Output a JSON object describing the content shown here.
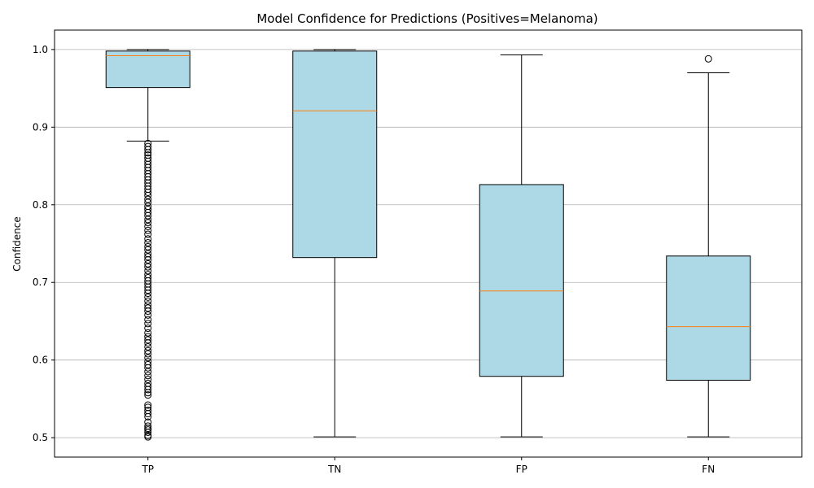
{
  "chart_data": {
    "type": "box",
    "title": "Model Confidence for Predictions (Positives=Melanoma)",
    "xlabel": "",
    "ylabel": "Confidence",
    "ylim": [
      0.475,
      1.025
    ],
    "yticks": [
      0.5,
      0.6,
      0.7,
      0.8,
      0.9,
      1.0
    ],
    "ytick_labels": [
      "0.5",
      "0.6",
      "0.7",
      "0.8",
      "0.9",
      "1.0"
    ],
    "grid": "horizontal",
    "box_color": "#add8e6",
    "median_color": "#ff7f0e",
    "categories": [
      "TP",
      "TN",
      "FP",
      "FN"
    ],
    "boxes": [
      {
        "label": "TP",
        "whisker_low": 0.882,
        "q1": 0.951,
        "median": 0.992,
        "q3": 0.998,
        "whisker_high": 1.0,
        "outliers": [
          0.501,
          0.503,
          0.507,
          0.51,
          0.512,
          0.515,
          0.52,
          0.527,
          0.531,
          0.535,
          0.539,
          0.542,
          0.555,
          0.558,
          0.562,
          0.566,
          0.57,
          0.575,
          0.58,
          0.585,
          0.59,
          0.594,
          0.598,
          0.603,
          0.608,
          0.612,
          0.617,
          0.622,
          0.626,
          0.63,
          0.635,
          0.641,
          0.647,
          0.652,
          0.658,
          0.663,
          0.667,
          0.671,
          0.676,
          0.681,
          0.686,
          0.69,
          0.694,
          0.698,
          0.702,
          0.706,
          0.71,
          0.715,
          0.72,
          0.724,
          0.729,
          0.733,
          0.737,
          0.742,
          0.746,
          0.751,
          0.756,
          0.762,
          0.767,
          0.772,
          0.777,
          0.781,
          0.786,
          0.79,
          0.794,
          0.798,
          0.803,
          0.807,
          0.812,
          0.816,
          0.82,
          0.824,
          0.828,
          0.832,
          0.836,
          0.84,
          0.844,
          0.848,
          0.852,
          0.856,
          0.86,
          0.864,
          0.867,
          0.871,
          0.875,
          0.879
        ]
      },
      {
        "label": "TN",
        "whisker_low": 0.501,
        "q1": 0.732,
        "median": 0.921,
        "q3": 0.998,
        "whisker_high": 1.0,
        "outliers": []
      },
      {
        "label": "FP",
        "whisker_low": 0.501,
        "q1": 0.579,
        "median": 0.689,
        "q3": 0.826,
        "whisker_high": 0.993,
        "outliers": []
      },
      {
        "label": "FN",
        "whisker_low": 0.501,
        "q1": 0.574,
        "median": 0.643,
        "q3": 0.734,
        "whisker_high": 0.97,
        "outliers": [
          0.988
        ]
      }
    ]
  }
}
